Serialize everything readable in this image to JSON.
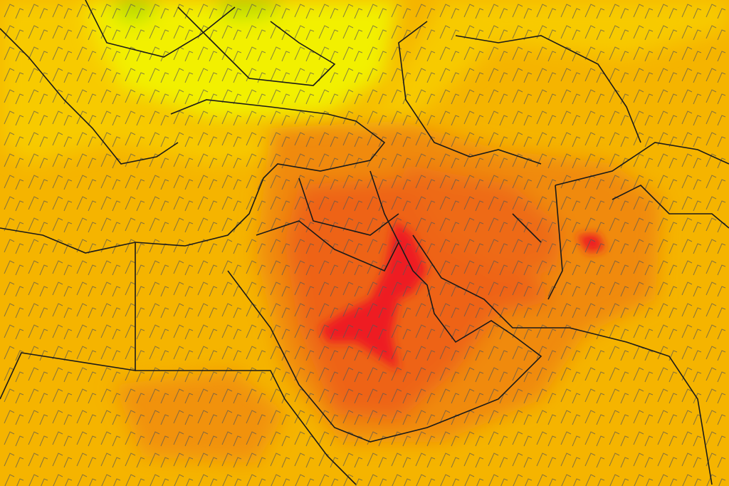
{
  "map": {
    "type": "temperature-with-wind-barbs",
    "colors": {
      "base": "#f5b400",
      "cool_green": "#a8e000",
      "cool_yellow": "#f2f200",
      "warm_yellow": "#f8d000",
      "orange": "#f5a000",
      "dark_orange": "#f07a10",
      "hot_orange": "#ee5a18",
      "hottest_red": "#ee1a20",
      "borders": "#1a1a1a",
      "wind_barbs": "#555555"
    }
  }
}
